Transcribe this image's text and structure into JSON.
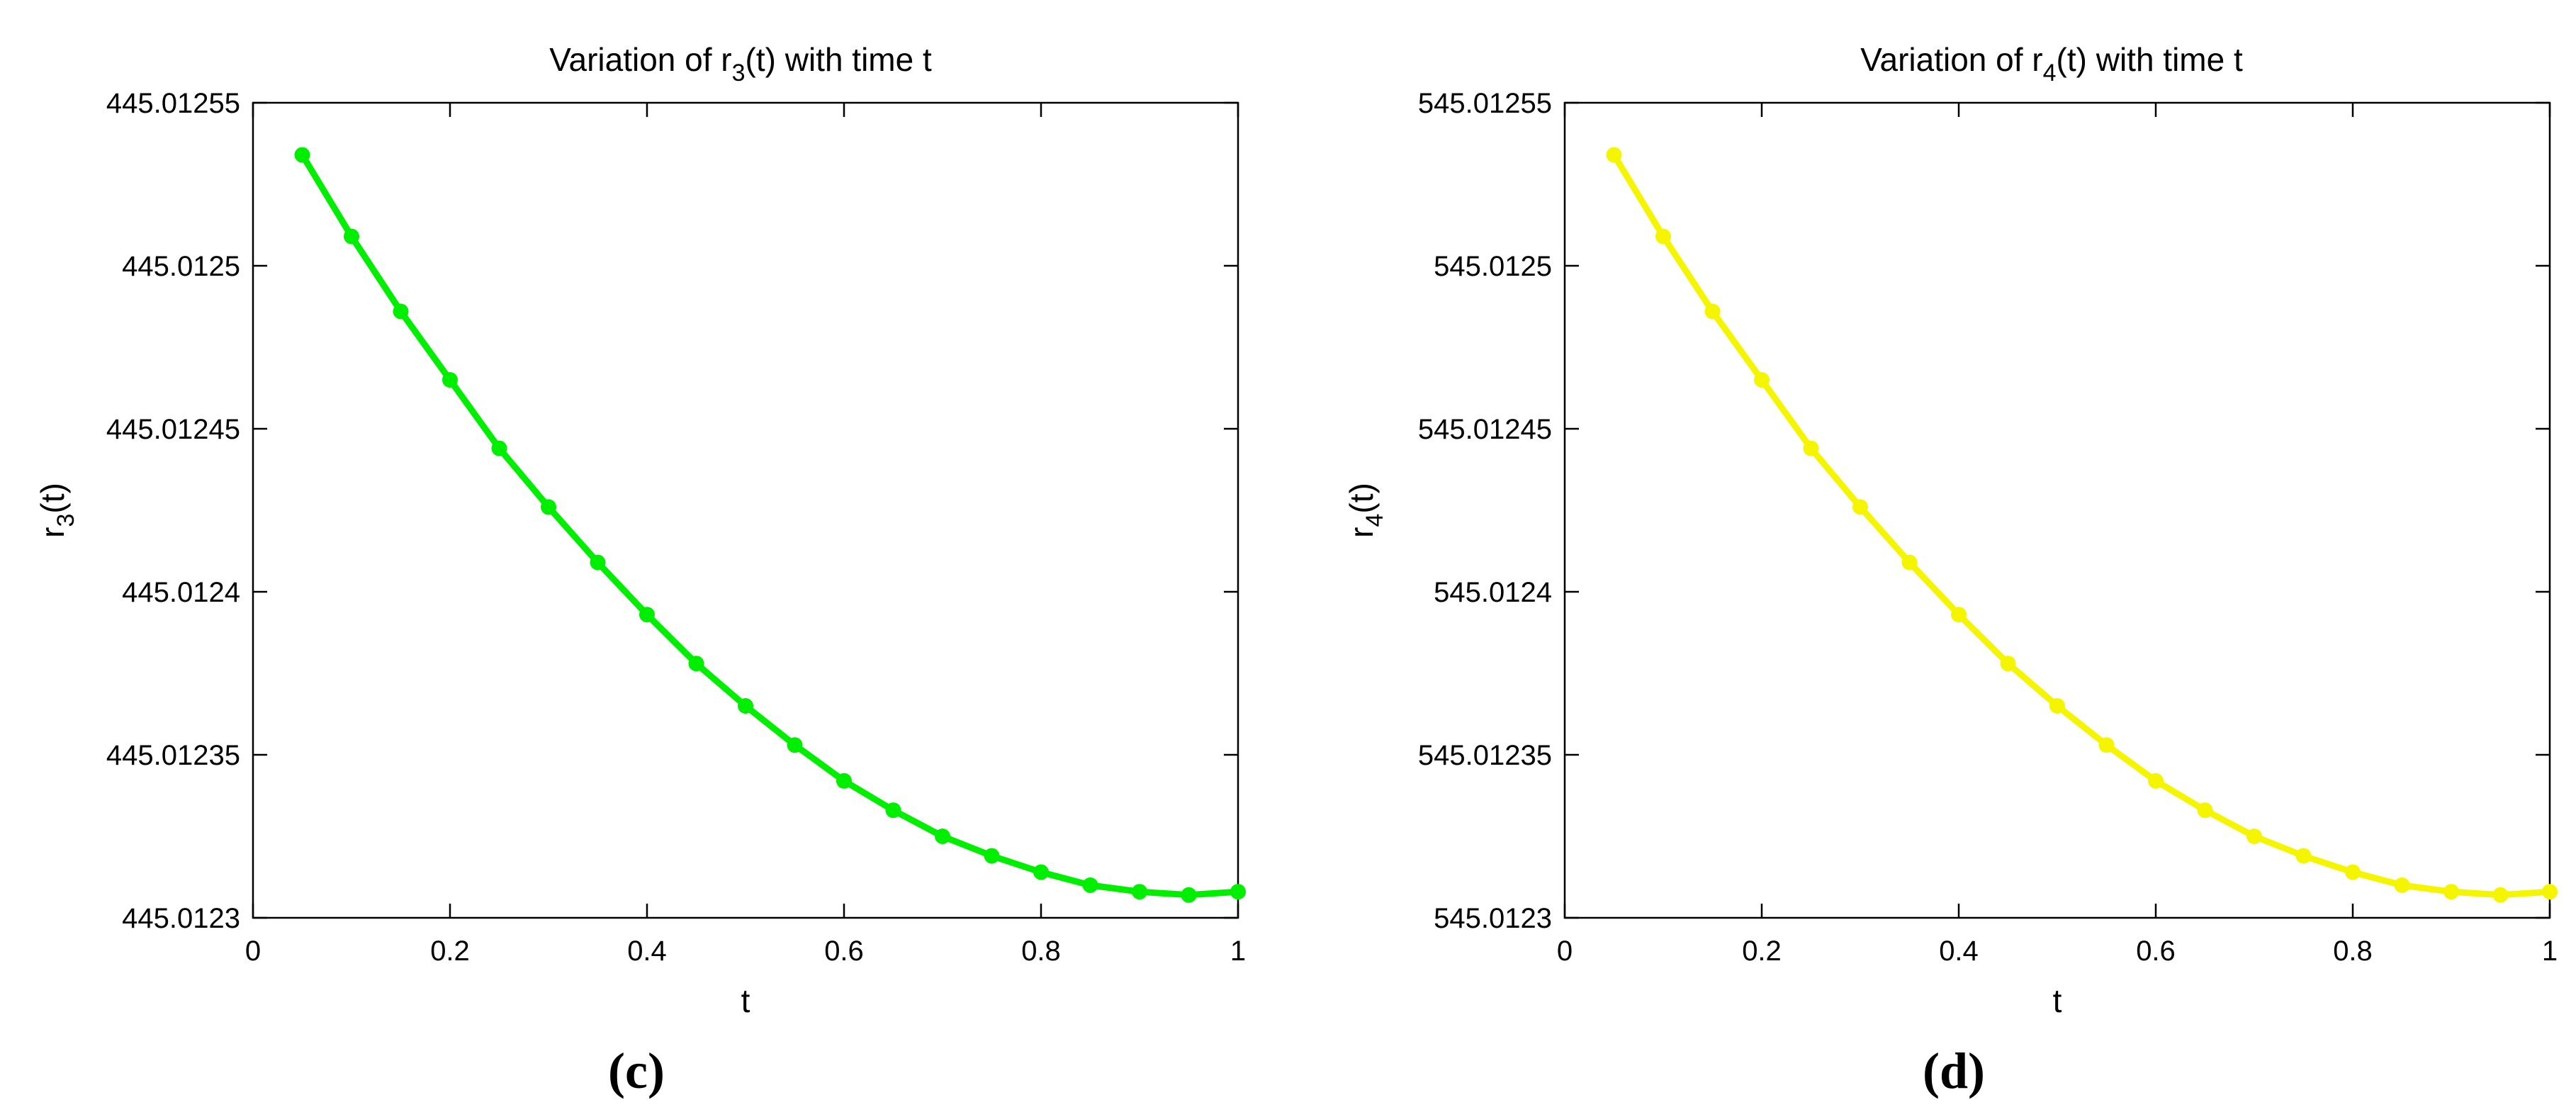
{
  "chart_data": [
    {
      "type": "line",
      "panel_label": "(c)",
      "title": "Variation of r(t) with time t",
      "title_parts": {
        "pre": "Variation of r",
        "sub": "3",
        "post": "(t) with time t"
      },
      "xlabel": "t",
      "ylabel": "r3(t)",
      "ylabel_parts": {
        "pre": "r",
        "sub": "3",
        "post": "(t)"
      },
      "xlim": [
        0,
        1
      ],
      "ylim": [
        445.0123,
        445.01255
      ],
      "xticks": [
        0,
        0.2,
        0.4,
        0.6,
        0.8,
        1
      ],
      "xtick_labels": [
        "0",
        "0.2",
        "0.4",
        "0.6",
        "0.8",
        "1"
      ],
      "yticks": [
        445.0123,
        445.01235,
        445.0124,
        445.01245,
        445.0125,
        445.01255
      ],
      "ytick_labels": [
        "445.0123",
        "445.01235",
        "445.0124",
        "445.01245",
        "445.0125",
        "445.01255"
      ],
      "grid": false,
      "color": "#00ee00",
      "series": [
        {
          "x": [
            0.05,
            0.1,
            0.15,
            0.2,
            0.25,
            0.3,
            0.35,
            0.4,
            0.45,
            0.5,
            0.55,
            0.6,
            0.65,
            0.7,
            0.75,
            0.8,
            0.85,
            0.9,
            0.95,
            1.0
          ],
          "y": [
            445.012534,
            445.012509,
            445.012486,
            445.012465,
            445.012444,
            445.012426,
            445.012409,
            445.012393,
            445.012378,
            445.012365,
            445.012353,
            445.012342,
            445.012333,
            445.012325,
            445.012319,
            445.012314,
            445.01231,
            445.012308,
            445.012307,
            445.012308
          ]
        }
      ]
    },
    {
      "type": "line",
      "panel_label": "(d)",
      "title": "Variation of r(t) with time t",
      "title_parts": {
        "pre": "Variation of r",
        "sub": "4",
        "post": "(t) with time t"
      },
      "xlabel": "t",
      "ylabel": "r4(t)",
      "ylabel_parts": {
        "pre": "r",
        "sub": "4",
        "post": "(t)"
      },
      "xlim": [
        0,
        1
      ],
      "ylim": [
        545.0123,
        545.01255
      ],
      "xticks": [
        0,
        0.2,
        0.4,
        0.6,
        0.8,
        1
      ],
      "xtick_labels": [
        "0",
        "0.2",
        "0.4",
        "0.6",
        "0.8",
        "1"
      ],
      "yticks": [
        545.0123,
        545.01235,
        545.0124,
        545.01245,
        545.0125,
        545.01255
      ],
      "ytick_labels": [
        "545.0123",
        "545.01235",
        "545.0124",
        "545.01245",
        "545.0125",
        "545.01255"
      ],
      "grid": false,
      "color": "#f5f500",
      "series": [
        {
          "x": [
            0.05,
            0.1,
            0.15,
            0.2,
            0.25,
            0.3,
            0.35,
            0.4,
            0.45,
            0.5,
            0.55,
            0.6,
            0.65,
            0.7,
            0.75,
            0.8,
            0.85,
            0.9,
            0.95,
            1.0
          ],
          "y": [
            545.012534,
            545.012509,
            545.012486,
            545.012465,
            545.012444,
            545.012426,
            545.012409,
            545.012393,
            545.012378,
            545.012365,
            545.012353,
            545.012342,
            545.012333,
            545.012325,
            545.012319,
            545.012314,
            545.01231,
            545.012308,
            545.012307,
            545.012308
          ]
        }
      ]
    }
  ]
}
